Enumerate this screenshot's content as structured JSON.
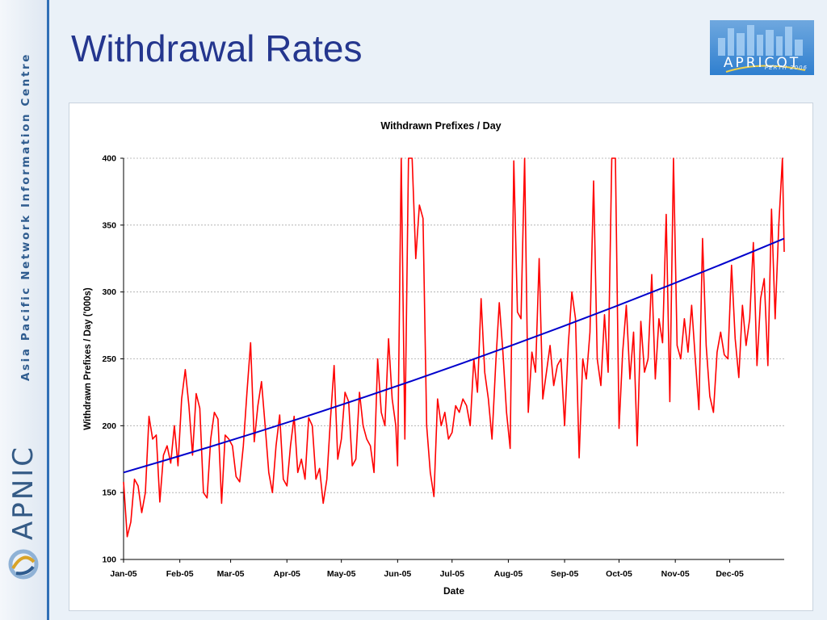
{
  "slide": {
    "title": "Withdrawal Rates",
    "sidebar_text": "Asia Pacific Network Information Centre",
    "sidebar_logo_text": "APNIC",
    "logo_text": "APRICOT",
    "logo_subtext": "PERTH 2006"
  },
  "colors": {
    "series": "#ff0000",
    "trend": "#0000cc",
    "title": "#24368e"
  },
  "chart_data": {
    "type": "line",
    "title": "Withdrawn Prefixes / Day",
    "xlabel": "Date",
    "ylabel": "Withdrawn Prefixes / Day ('000s)",
    "ylim": [
      100,
      400
    ],
    "yticks": [
      100,
      150,
      200,
      250,
      300,
      350,
      400
    ],
    "xlim": [
      "2005-01-01",
      "2005-12-31"
    ],
    "xticks": [
      {
        "date": "2005-01-01",
        "label": "Jan-05"
      },
      {
        "date": "2005-02-01",
        "label": "Feb-05"
      },
      {
        "date": "2005-03-01",
        "label": "Mar-05"
      },
      {
        "date": "2005-04-01",
        "label": "Apr-05"
      },
      {
        "date": "2005-05-01",
        "label": "May-05"
      },
      {
        "date": "2005-06-01",
        "label": "Jun-05"
      },
      {
        "date": "2005-07-01",
        "label": "Jul-05"
      },
      {
        "date": "2005-08-01",
        "label": "Aug-05"
      },
      {
        "date": "2005-09-01",
        "label": "Sep-05"
      },
      {
        "date": "2005-10-01",
        "label": "Oct-05"
      },
      {
        "date": "2005-11-01",
        "label": "Nov-05"
      },
      {
        "date": "2005-12-01",
        "label": "Dec-05"
      }
    ],
    "grid": true,
    "legend": "none",
    "series": [
      {
        "style": "line",
        "color": "#ff0000",
        "points": [
          [
            "2005-01-01",
            158
          ],
          [
            "2005-01-03",
            117
          ],
          [
            "2005-01-05",
            128
          ],
          [
            "2005-01-07",
            160
          ],
          [
            "2005-01-09",
            155
          ],
          [
            "2005-01-11",
            135
          ],
          [
            "2005-01-13",
            150
          ],
          [
            "2005-01-15",
            207
          ],
          [
            "2005-01-17",
            190
          ],
          [
            "2005-01-19",
            193
          ],
          [
            "2005-01-21",
            143
          ],
          [
            "2005-01-23",
            178
          ],
          [
            "2005-01-25",
            185
          ],
          [
            "2005-01-27",
            172
          ],
          [
            "2005-01-29",
            200
          ],
          [
            "2005-01-31",
            170
          ],
          [
            "2005-02-02",
            220
          ],
          [
            "2005-02-04",
            242
          ],
          [
            "2005-02-06",
            215
          ],
          [
            "2005-02-08",
            178
          ],
          [
            "2005-02-10",
            224
          ],
          [
            "2005-02-12",
            213
          ],
          [
            "2005-02-14",
            150
          ],
          [
            "2005-02-16",
            146
          ],
          [
            "2005-02-18",
            190
          ],
          [
            "2005-02-20",
            210
          ],
          [
            "2005-02-22",
            205
          ],
          [
            "2005-02-24",
            142
          ],
          [
            "2005-02-26",
            193
          ],
          [
            "2005-02-28",
            190
          ],
          [
            "2005-03-02",
            185
          ],
          [
            "2005-03-04",
            162
          ],
          [
            "2005-03-06",
            158
          ],
          [
            "2005-03-08",
            185
          ],
          [
            "2005-03-10",
            225
          ],
          [
            "2005-03-12",
            262
          ],
          [
            "2005-03-14",
            188
          ],
          [
            "2005-03-16",
            215
          ],
          [
            "2005-03-18",
            233
          ],
          [
            "2005-03-20",
            200
          ],
          [
            "2005-03-22",
            165
          ],
          [
            "2005-03-24",
            150
          ],
          [
            "2005-03-26",
            185
          ],
          [
            "2005-03-28",
            208
          ],
          [
            "2005-03-30",
            160
          ],
          [
            "2005-04-01",
            155
          ],
          [
            "2005-04-03",
            185
          ],
          [
            "2005-04-05",
            207
          ],
          [
            "2005-04-07",
            165
          ],
          [
            "2005-04-09",
            175
          ],
          [
            "2005-04-11",
            160
          ],
          [
            "2005-04-13",
            206
          ],
          [
            "2005-04-15",
            200
          ],
          [
            "2005-04-17",
            160
          ],
          [
            "2005-04-19",
            168
          ],
          [
            "2005-04-21",
            142
          ],
          [
            "2005-04-23",
            160
          ],
          [
            "2005-04-25",
            205
          ],
          [
            "2005-04-27",
            245
          ],
          [
            "2005-04-29",
            175
          ],
          [
            "2005-05-01",
            190
          ],
          [
            "2005-05-03",
            225
          ],
          [
            "2005-05-05",
            218
          ],
          [
            "2005-05-07",
            170
          ],
          [
            "2005-05-09",
            175
          ],
          [
            "2005-05-11",
            225
          ],
          [
            "2005-05-13",
            200
          ],
          [
            "2005-05-15",
            190
          ],
          [
            "2005-05-17",
            185
          ],
          [
            "2005-05-19",
            165
          ],
          [
            "2005-05-21",
            250
          ],
          [
            "2005-05-23",
            210
          ],
          [
            "2005-05-25",
            200
          ],
          [
            "2005-05-27",
            265
          ],
          [
            "2005-05-29",
            220
          ],
          [
            "2005-05-31",
            200
          ],
          [
            "2005-06-01",
            170
          ],
          [
            "2005-06-03",
            400
          ],
          [
            "2005-06-05",
            190
          ],
          [
            "2005-06-07",
            400
          ],
          [
            "2005-06-09",
            400
          ],
          [
            "2005-06-11",
            325
          ],
          [
            "2005-06-13",
            365
          ],
          [
            "2005-06-15",
            355
          ],
          [
            "2005-06-17",
            200
          ],
          [
            "2005-06-19",
            165
          ],
          [
            "2005-06-21",
            147
          ],
          [
            "2005-06-23",
            220
          ],
          [
            "2005-06-25",
            200
          ],
          [
            "2005-06-27",
            210
          ],
          [
            "2005-06-29",
            190
          ],
          [
            "2005-07-01",
            195
          ],
          [
            "2005-07-03",
            215
          ],
          [
            "2005-07-05",
            210
          ],
          [
            "2005-07-07",
            220
          ],
          [
            "2005-07-09",
            215
          ],
          [
            "2005-07-11",
            200
          ],
          [
            "2005-07-13",
            250
          ],
          [
            "2005-07-15",
            225
          ],
          [
            "2005-07-17",
            295
          ],
          [
            "2005-07-19",
            240
          ],
          [
            "2005-07-21",
            220
          ],
          [
            "2005-07-23",
            190
          ],
          [
            "2005-07-25",
            245
          ],
          [
            "2005-07-27",
            292
          ],
          [
            "2005-07-29",
            255
          ],
          [
            "2005-07-31",
            210
          ],
          [
            "2005-08-02",
            183
          ],
          [
            "2005-08-04",
            398
          ],
          [
            "2005-08-06",
            285
          ],
          [
            "2005-08-08",
            280
          ],
          [
            "2005-08-10",
            400
          ],
          [
            "2005-08-12",
            210
          ],
          [
            "2005-08-14",
            255
          ],
          [
            "2005-08-16",
            240
          ],
          [
            "2005-08-18",
            325
          ],
          [
            "2005-08-20",
            220
          ],
          [
            "2005-08-22",
            240
          ],
          [
            "2005-08-24",
            260
          ],
          [
            "2005-08-26",
            230
          ],
          [
            "2005-08-28",
            245
          ],
          [
            "2005-08-30",
            250
          ],
          [
            "2005-09-01",
            200
          ],
          [
            "2005-09-03",
            260
          ],
          [
            "2005-09-05",
            300
          ],
          [
            "2005-09-07",
            280
          ],
          [
            "2005-09-09",
            176
          ],
          [
            "2005-09-11",
            250
          ],
          [
            "2005-09-13",
            235
          ],
          [
            "2005-09-15",
            270
          ],
          [
            "2005-09-17",
            383
          ],
          [
            "2005-09-19",
            250
          ],
          [
            "2005-09-21",
            230
          ],
          [
            "2005-09-23",
            283
          ],
          [
            "2005-09-25",
            240
          ],
          [
            "2005-09-27",
            400
          ],
          [
            "2005-09-29",
            400
          ],
          [
            "2005-10-01",
            198
          ],
          [
            "2005-10-03",
            255
          ],
          [
            "2005-10-05",
            290
          ],
          [
            "2005-10-07",
            235
          ],
          [
            "2005-10-09",
            270
          ],
          [
            "2005-10-11",
            185
          ],
          [
            "2005-10-13",
            278
          ],
          [
            "2005-10-15",
            240
          ],
          [
            "2005-10-17",
            250
          ],
          [
            "2005-10-19",
            313
          ],
          [
            "2005-10-21",
            235
          ],
          [
            "2005-10-23",
            280
          ],
          [
            "2005-10-25",
            262
          ],
          [
            "2005-10-27",
            358
          ],
          [
            "2005-10-29",
            218
          ],
          [
            "2005-10-31",
            400
          ],
          [
            "2005-11-02",
            260
          ],
          [
            "2005-11-04",
            250
          ],
          [
            "2005-11-06",
            280
          ],
          [
            "2005-11-08",
            255
          ],
          [
            "2005-11-10",
            290
          ],
          [
            "2005-11-12",
            250
          ],
          [
            "2005-11-14",
            212
          ],
          [
            "2005-11-16",
            340
          ],
          [
            "2005-11-18",
            260
          ],
          [
            "2005-11-20",
            222
          ],
          [
            "2005-11-22",
            210
          ],
          [
            "2005-11-24",
            255
          ],
          [
            "2005-11-26",
            270
          ],
          [
            "2005-11-28",
            253
          ],
          [
            "2005-11-30",
            250
          ],
          [
            "2005-12-02",
            320
          ],
          [
            "2005-12-04",
            265
          ],
          [
            "2005-12-06",
            236
          ],
          [
            "2005-12-08",
            290
          ],
          [
            "2005-12-10",
            260
          ],
          [
            "2005-12-12",
            280
          ],
          [
            "2005-12-14",
            337
          ],
          [
            "2005-12-16",
            245
          ],
          [
            "2005-12-18",
            295
          ],
          [
            "2005-12-20",
            310
          ],
          [
            "2005-12-22",
            245
          ],
          [
            "2005-12-24",
            362
          ],
          [
            "2005-12-26",
            280
          ],
          [
            "2005-12-28",
            350
          ],
          [
            "2005-12-30",
            400
          ],
          [
            "2005-12-31",
            330
          ]
        ]
      },
      {
        "style": "trend",
        "color": "#0000cc",
        "points": [
          [
            "2005-01-01",
            165
          ],
          [
            "2005-07-01",
            236
          ],
          [
            "2005-12-31",
            340
          ]
        ]
      }
    ]
  }
}
